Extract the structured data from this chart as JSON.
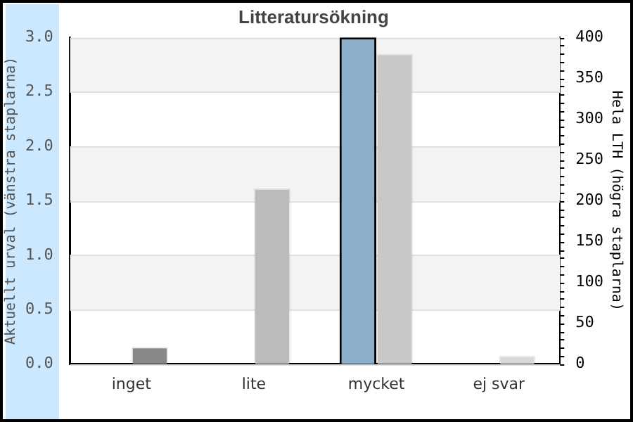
{
  "chart_data": {
    "type": "bar",
    "title": "Litteratursökning",
    "ylabel": "Aktuellt urval (vänstra staplarna)",
    "y2label": "Hela LTH (högra staplarna)",
    "categories": [
      "inget",
      "lite",
      "mycket",
      "ej svar"
    ],
    "series": [
      {
        "color": "#8eafc9",
        "values": [
          null,
          null,
          3,
          null
        ]
      },
      {
        "axis": "y2",
        "colors": [
          "#888888",
          "#bbbbbb",
          "#c8c8c8",
          "#d8d8d8"
        ],
        "values": [
          21,
          215,
          380,
          10
        ]
      }
    ],
    "ylim": [
      0,
      3
    ],
    "yticks": [
      {
        "value": 0,
        "label": "0.0"
      },
      {
        "value": 0.5,
        "label": "0.5"
      },
      {
        "value": 1,
        "label": "1.0"
      },
      {
        "value": 1.5,
        "label": "1.5"
      },
      {
        "value": 2,
        "label": "2.0"
      },
      {
        "value": 2.5,
        "label": "2.5"
      },
      {
        "value": 3,
        "label": "3.0"
      }
    ],
    "y2lim": [
      0,
      400
    ],
    "y2ticks": [
      0,
      50,
      100,
      150,
      200,
      250,
      300,
      350,
      400
    ],
    "grid": "y",
    "legend": false
  }
}
